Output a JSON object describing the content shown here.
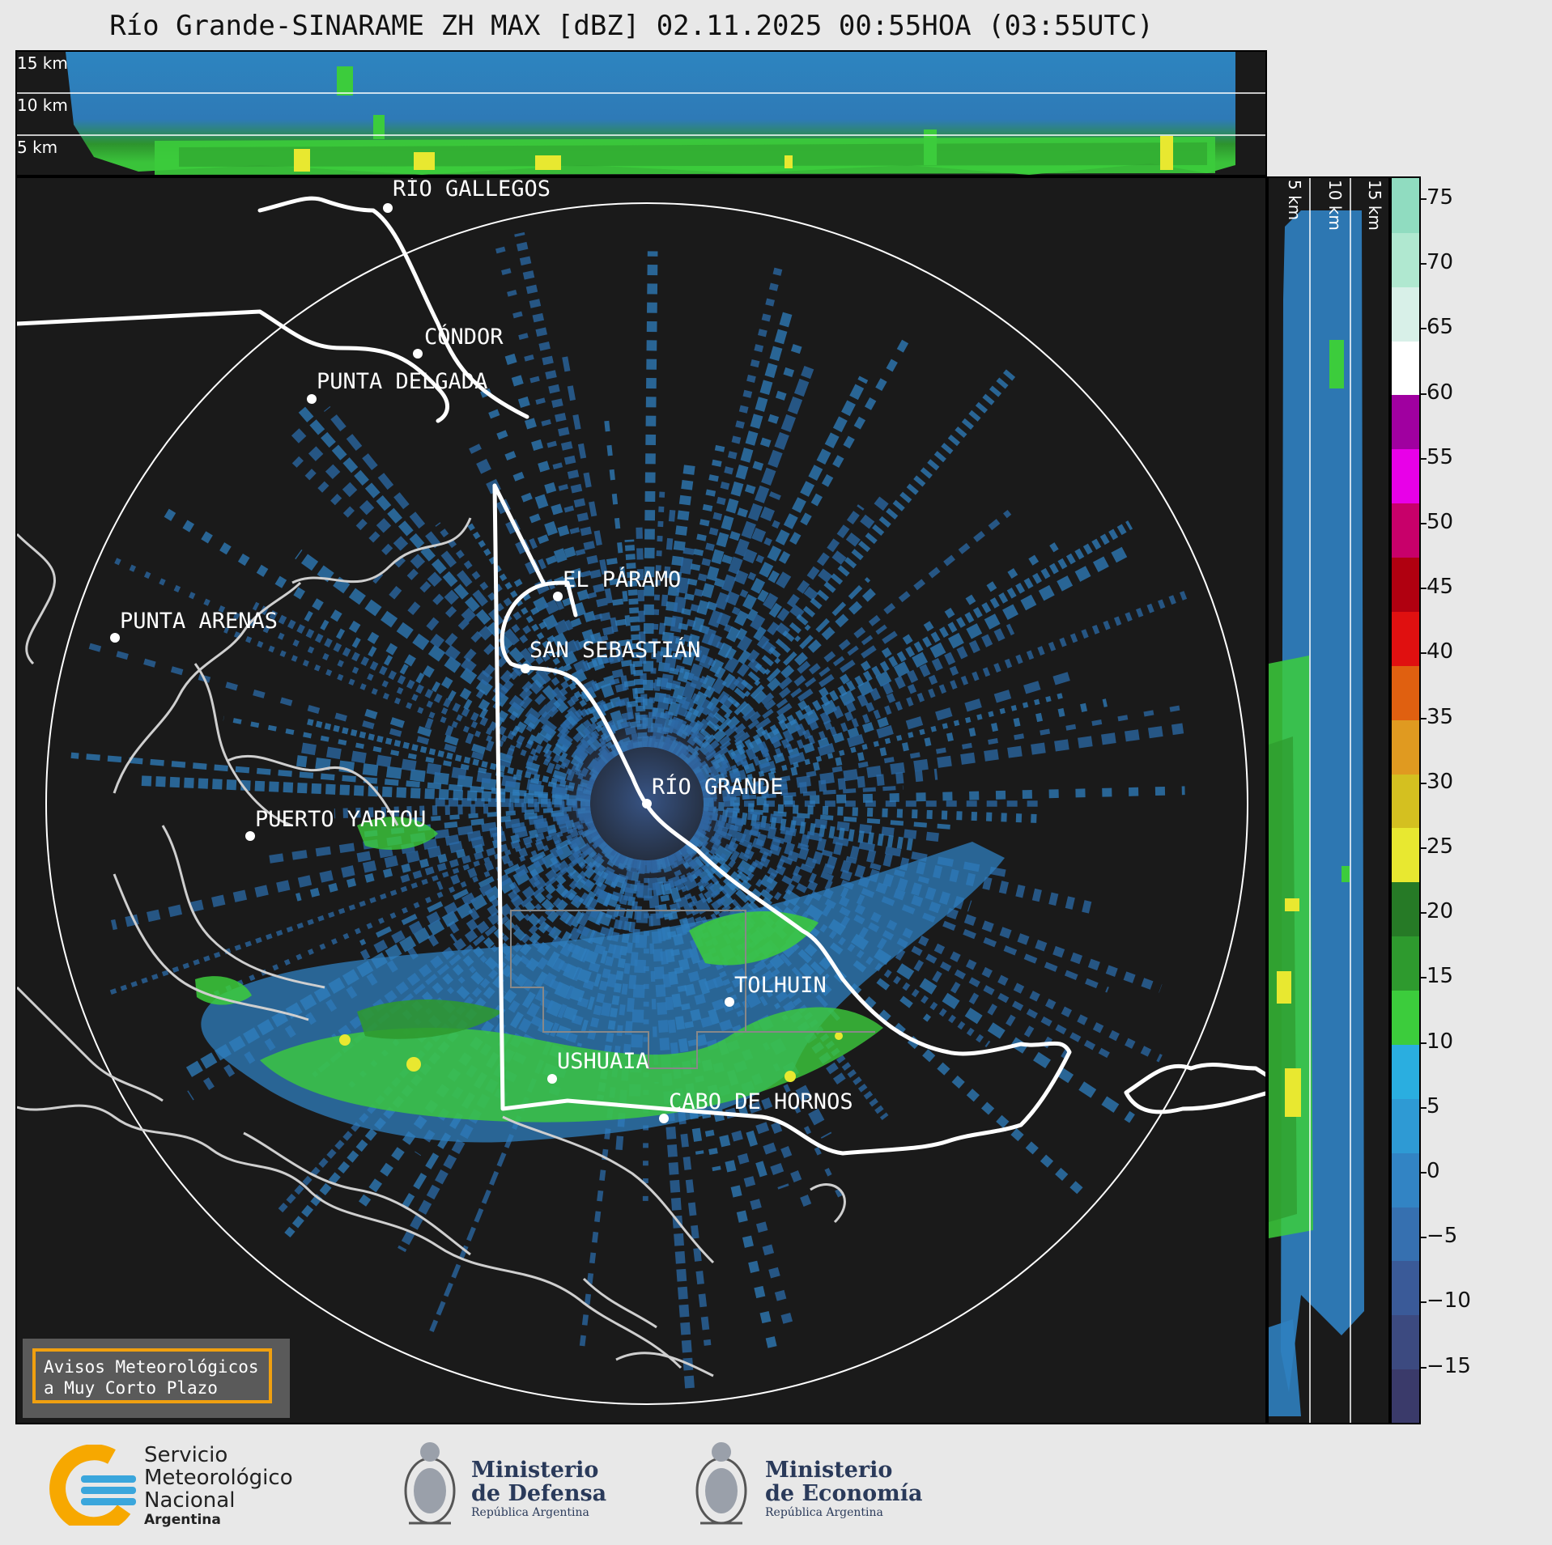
{
  "title": "Río Grande-SINARAME ZH MAX [dBZ] 02.11.2025 00:55HOA (03:55UTC)",
  "top_panel": {
    "labels": [
      "15 km",
      "10 km",
      "5 km"
    ]
  },
  "side_panel": {
    "labels": [
      "5 km",
      "10 km",
      "15 km"
    ]
  },
  "cities": [
    {
      "name": "RÍO GALLEGOS"
    },
    {
      "name": "CÓNDOR"
    },
    {
      "name": "PUNTA DELGADA"
    },
    {
      "name": "EL PÁRAMO"
    },
    {
      "name": "PUNTA ARENAS"
    },
    {
      "name": "SAN SEBASTIÁN"
    },
    {
      "name": "RÍO GRANDE"
    },
    {
      "name": "PUERTO YARTOU"
    },
    {
      "name": "TOLHUIN"
    },
    {
      "name": "USHUAIA"
    },
    {
      "name": "CABO DE HORNOS"
    }
  ],
  "colorbar": {
    "ticks": [
      "75",
      "70",
      "65",
      "60",
      "55",
      "50",
      "45",
      "40",
      "35",
      "30",
      "25",
      "20",
      "15",
      "10",
      "5",
      "0",
      "−5",
      "−10",
      "−15"
    ],
    "colors": [
      "#3a3a6a",
      "#3c4a80",
      "#3a5a98",
      "#3670b0",
      "#3284c4",
      "#2e9ad4",
      "#2aaee0",
      "#3ccc3c",
      "#2e9a2e",
      "#267a26",
      "#e8e830",
      "#d4c020",
      "#e09a20",
      "#e06010",
      "#e01010",
      "#b00010",
      "#c8006a",
      "#e800e8",
      "#a000a0",
      "#ffffff",
      "#d8f0e8",
      "#b0e8d0",
      "#90dcc0"
    ]
  },
  "notice": {
    "line1": "Avisos Meteorológicos",
    "line2": "a Muy Corto Plazo"
  },
  "logos": {
    "smn": {
      "line1": "Servicio",
      "line2": "Meteorológico",
      "line3": "Nacional",
      "line4": "Argentina"
    },
    "defensa": {
      "line1": "Ministerio",
      "line2": "de Defensa",
      "line3": "República Argentina"
    },
    "economia": {
      "line1": "Ministerio",
      "line2": "de Economía",
      "line3": "República Argentina"
    }
  }
}
